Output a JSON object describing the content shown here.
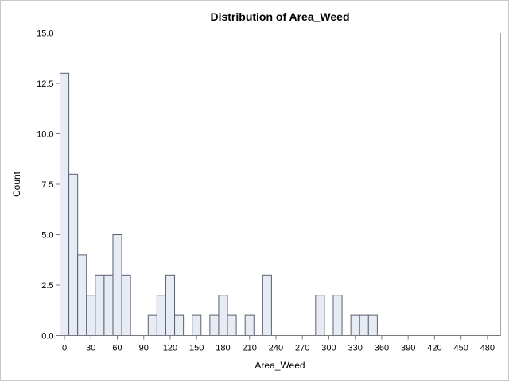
{
  "chart_data": {
    "type": "bar",
    "title": "Distribution of Area_Weed",
    "xlabel": "Area_Weed",
    "ylabel": "Count",
    "bin_width": 10,
    "bin_starts": [
      -5,
      5,
      15,
      25,
      35,
      45,
      55,
      65,
      75,
      85,
      95,
      105,
      115,
      125,
      135,
      145,
      155,
      165,
      175,
      185,
      195,
      205,
      215,
      225,
      235,
      245,
      255,
      265,
      275,
      285,
      295,
      305,
      315,
      325,
      335,
      345,
      355,
      365,
      375,
      385,
      395,
      405,
      415,
      425,
      435,
      445,
      455,
      465,
      475,
      485
    ],
    "values": [
      13,
      8,
      4,
      2,
      3,
      3,
      5,
      3,
      0,
      0,
      1,
      2,
      3,
      1,
      0,
      1,
      0,
      1,
      2,
      1,
      0,
      1,
      0,
      3,
      0,
      0,
      0,
      0,
      0,
      2,
      0,
      2,
      0,
      1,
      1,
      1,
      0,
      0,
      0,
      0,
      0,
      0,
      0,
      0,
      0,
      0,
      0,
      0,
      0,
      0
    ],
    "xlim": [
      -5,
      495
    ],
    "ylim": [
      0,
      15
    ],
    "x_ticks": [
      "0",
      "30",
      "60",
      "90",
      "120",
      "150",
      "180",
      "210",
      "240",
      "270",
      "300",
      "330",
      "360",
      "390",
      "420",
      "450",
      "480"
    ],
    "y_ticks": [
      "0.0",
      "2.5",
      "5.0",
      "7.5",
      "10.0",
      "12.5",
      "15.0"
    ],
    "grid": false
  }
}
